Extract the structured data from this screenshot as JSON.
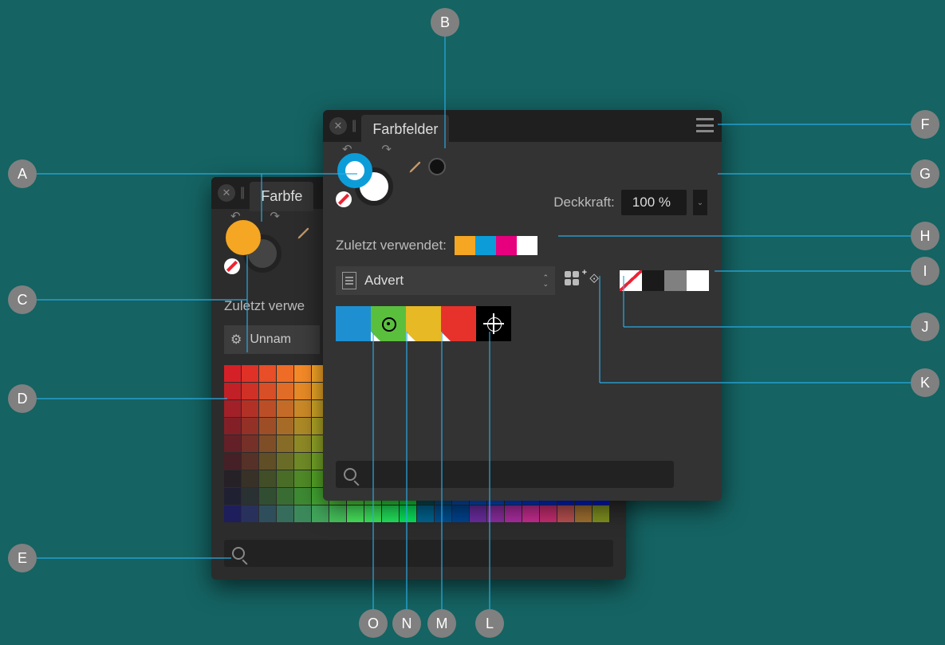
{
  "backPanel": {
    "title": "Farbfe",
    "recentLabel": "Zuletzt verwe",
    "paletteName": "Unnam",
    "ringFrontColor": "#f5a623",
    "ringBackColor": "#3a3a3a"
  },
  "frontPanel": {
    "title": "Farbfelder",
    "opacityLabel": "Deckkraft:",
    "opacityValue": "100 %",
    "recentLabel": "Zuletzt verwendet:",
    "recentColors": [
      "#f5a623",
      "#0c9dd9",
      "#e6007e",
      "#ffffff"
    ],
    "paletteName": "Advert",
    "paletteSwatches": [
      {
        "color": "#1e90d2",
        "global": false,
        "spot": false
      },
      {
        "color": "#5bbf3e",
        "global": true,
        "spot": true
      },
      {
        "color": "#e6b925",
        "global": true,
        "spot": false
      },
      {
        "color": "#e6322b",
        "global": true,
        "spot": false
      }
    ],
    "fillStrokeSwatches": [
      {
        "type": "none"
      },
      {
        "color": "#1a1a1a"
      },
      {
        "color": "#808080"
      },
      {
        "color": "#ffffff"
      }
    ],
    "ringFrontColor": "#0c9dd9",
    "ringBackColor": "#ffffff",
    "pickedColor": "#111111"
  },
  "backGridColors": [
    "#d62027",
    "#e03127",
    "#e84e27",
    "#ef6c27",
    "#f58a27",
    "#fba827",
    "#ffc627",
    "#ffe427",
    "#f2e427",
    "#d8e427",
    "#bee427",
    "#a4e427",
    "#8ae427",
    "#70e427",
    "#56e427",
    "#3ce427",
    "#22e427",
    "#08e427",
    "#00e45a",
    "#00e48c",
    "#00e4be",
    "#00e4e4",
    "#c12027",
    "#cf3127",
    "#d84e27",
    "#e06c27",
    "#e78a27",
    "#eda827",
    "#f2c627",
    "#f2e427",
    "#d8e427",
    "#bee427",
    "#a4e427",
    "#8ae427",
    "#70e427",
    "#56e427",
    "#3ce427",
    "#22e427",
    "#08e427",
    "#00c85a",
    "#00c88c",
    "#00c8be",
    "#00c8d8",
    "#00c8e4",
    "#a22027",
    "#b23127",
    "#bc4e27",
    "#c46c27",
    "#cb8a27",
    "#d1a827",
    "#d6c627",
    "#d6e427",
    "#bee427",
    "#a4e427",
    "#8ae427",
    "#70e427",
    "#56e427",
    "#3ce427",
    "#22e427",
    "#08e427",
    "#00b45a",
    "#00b48c",
    "#00b4be",
    "#00b4d8",
    "#00b4e4",
    "#00a8e4",
    "#832027",
    "#943127",
    "#9e4e27",
    "#a66c27",
    "#ad8a27",
    "#b3a827",
    "#b8c627",
    "#b8e427",
    "#a4e427",
    "#8ae427",
    "#70e427",
    "#56e427",
    "#3ce427",
    "#22e427",
    "#08e427",
    "#00a05a",
    "#00a08c",
    "#00a0be",
    "#00a0d8",
    "#00a0e4",
    "#0094e4",
    "#0088e4",
    "#642027",
    "#753127",
    "#7f4e27",
    "#876c27",
    "#8e8a27",
    "#94a827",
    "#99c627",
    "#99e427",
    "#8ae427",
    "#70e427",
    "#56e427",
    "#3ce427",
    "#22e427",
    "#08e427",
    "#008c5a",
    "#008c8c",
    "#008cbe",
    "#008cd8",
    "#008ce4",
    "#0080e4",
    "#0074e4",
    "#0068e4",
    "#452027",
    "#563127",
    "#604e27",
    "#686c27",
    "#6f8a27",
    "#75a827",
    "#7ac627",
    "#7ae427",
    "#70e427",
    "#56e427",
    "#3ce427",
    "#22e427",
    "#08e427",
    "#00785a",
    "#00788c",
    "#0078be",
    "#0078d8",
    "#0078e4",
    "#006ce4",
    "#0060e4",
    "#0054e4",
    "#0048e4",
    "#262027",
    "#373127",
    "#414e27",
    "#496c27",
    "#508a27",
    "#56a827",
    "#5bc627",
    "#5be427",
    "#56e427",
    "#3ce427",
    "#22e427",
    "#08e427",
    "#00645a",
    "#00648c",
    "#0064be",
    "#0064d8",
    "#0064e4",
    "#0058e4",
    "#004ce4",
    "#0040e4",
    "#0034e4",
    "#0028e4",
    "#202033",
    "#2a3133",
    "#314e33",
    "#386c33",
    "#3e8a33",
    "#44a833",
    "#49c633",
    "#49e433",
    "#3ce433",
    "#22e433",
    "#08e433",
    "#00505a",
    "#00508c",
    "#0050be",
    "#0050d8",
    "#0050e4",
    "#0044e4",
    "#0038e4",
    "#002ce4",
    "#0020e4",
    "#001ce4",
    "#0018e4",
    "#1e1e5c",
    "#28315c",
    "#2f4e5c",
    "#366c5c",
    "#3c8a5c",
    "#42a85c",
    "#47c65c",
    "#47e45c",
    "#3ce45c",
    "#22e45c",
    "#08e45c",
    "#006490",
    "#005090",
    "#004490",
    "#6b2da0",
    "#8b2da0",
    "#ab2da0",
    "#c52d90",
    "#c52d70",
    "#b85050",
    "#a07030",
    "#809020"
  ],
  "callouts": {
    "A": "A",
    "B": "B",
    "C": "C",
    "D": "D",
    "E": "E",
    "F": "F",
    "G": "G",
    "H": "H",
    "I": "I",
    "J": "J",
    "K": "K",
    "L": "L",
    "M": "M",
    "N": "N",
    "O": "O"
  }
}
